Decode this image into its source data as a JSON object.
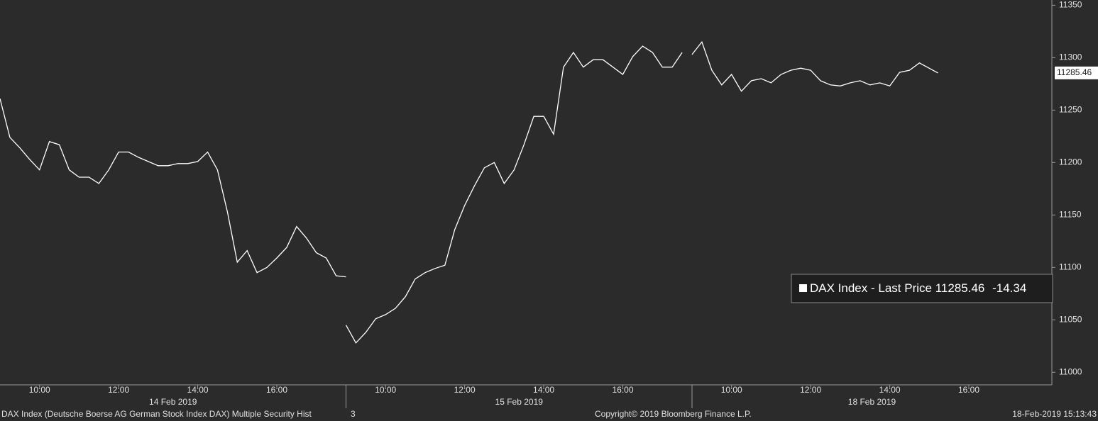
{
  "chart_data": {
    "type": "line",
    "series_name": "DAX Index - Last Price",
    "color": "#ffffff",
    "last_price": 11285.46,
    "change": -14.34,
    "ylim": [
      10988,
      11355
    ],
    "yticks": [
      11000,
      11050,
      11100,
      11150,
      11200,
      11250,
      11300,
      11350
    ],
    "sessions": [
      {
        "date": "14 Feb 2019",
        "xlim": [
          9,
          17.75
        ],
        "xticks": [
          {
            "value": 10,
            "label": "10:00"
          },
          {
            "value": 12,
            "label": "12:00"
          },
          {
            "value": 14,
            "label": "14:00"
          },
          {
            "value": 16,
            "label": "16:00"
          }
        ],
        "x": [
          9,
          9.25,
          9.5,
          9.75,
          10,
          10.25,
          10.5,
          10.75,
          11,
          11.25,
          11.5,
          11.75,
          12,
          12.25,
          12.5,
          12.75,
          13,
          13.25,
          13.5,
          13.75,
          14,
          14.25,
          14.5,
          14.75,
          15,
          15.25,
          15.5,
          15.75,
          16,
          16.25,
          16.5,
          16.75,
          17,
          17.25,
          17.5,
          17.75
        ],
        "values": [
          11261,
          11224,
          11214,
          11203,
          11193,
          11220,
          11217,
          11193,
          11186,
          11186,
          11180,
          11193,
          11210,
          11210,
          11205,
          11201,
          11197,
          11197,
          11199,
          11199,
          11201,
          11210,
          11193,
          11153,
          11105,
          11116,
          11095,
          11100,
          11109,
          11119,
          11139,
          11128,
          11114,
          11109,
          11092,
          11091
        ]
      },
      {
        "date": "15 Feb 2019",
        "xlim": [
          9,
          17.75
        ],
        "xticks": [
          {
            "value": 10,
            "label": "10:00"
          },
          {
            "value": 12,
            "label": "12:00"
          },
          {
            "value": 14,
            "label": "14:00"
          },
          {
            "value": 16,
            "label": "16:00"
          }
        ],
        "x": [
          9,
          9.25,
          9.5,
          9.75,
          10,
          10.25,
          10.5,
          10.75,
          11,
          11.25,
          11.5,
          11.75,
          12,
          12.25,
          12.5,
          12.75,
          13,
          13.25,
          13.5,
          13.75,
          14,
          14.25,
          14.5,
          14.75,
          15,
          15.25,
          15.5,
          15.75,
          16,
          16.25,
          16.5,
          16.75,
          17,
          17.25,
          17.5
        ],
        "values": [
          11045,
          11028,
          11038,
          11051,
          11055,
          11061,
          11072,
          11089,
          11095,
          11099,
          11102,
          11136,
          11159,
          11178,
          11195,
          11200,
          11180,
          11193,
          11217,
          11244,
          11244,
          11227,
          11291,
          11305,
          11291,
          11298,
          11298,
          11291,
          11284,
          11301,
          11311,
          11305,
          11291,
          11291,
          11305
        ]
      },
      {
        "date": "18 Feb 2019",
        "xlim": [
          9,
          18.1
        ],
        "xticks": [
          {
            "value": 10,
            "label": "10:00"
          },
          {
            "value": 12,
            "label": "12:00"
          },
          {
            "value": 14,
            "label": "14:00"
          },
          {
            "value": 16,
            "label": "16:00"
          }
        ],
        "x": [
          9,
          9.25,
          9.5,
          9.75,
          10,
          10.25,
          10.5,
          10.75,
          11,
          11.25,
          11.5,
          11.75,
          12,
          12.25,
          12.5,
          12.75,
          13,
          13.25,
          13.5,
          13.75,
          14,
          14.25,
          14.5,
          14.75,
          15.22
        ],
        "values": [
          11303,
          11315,
          11288,
          11274,
          11284,
          11268,
          11278,
          11280,
          11276,
          11284,
          11288,
          11290,
          11288,
          11278,
          11274,
          11273,
          11276,
          11278,
          11274,
          11276,
          11273,
          11286,
          11288,
          11295,
          11285.46
        ]
      }
    ],
    "footer": {
      "description": "DAX Index (Deutsche Boerse AG German Stock Index DAX) Multiple Security Hist",
      "page": "3",
      "copyright": "Copyright© 2019 Bloomberg Finance L.P.",
      "timestamp": "18-Feb-2019 15:13:43"
    }
  }
}
